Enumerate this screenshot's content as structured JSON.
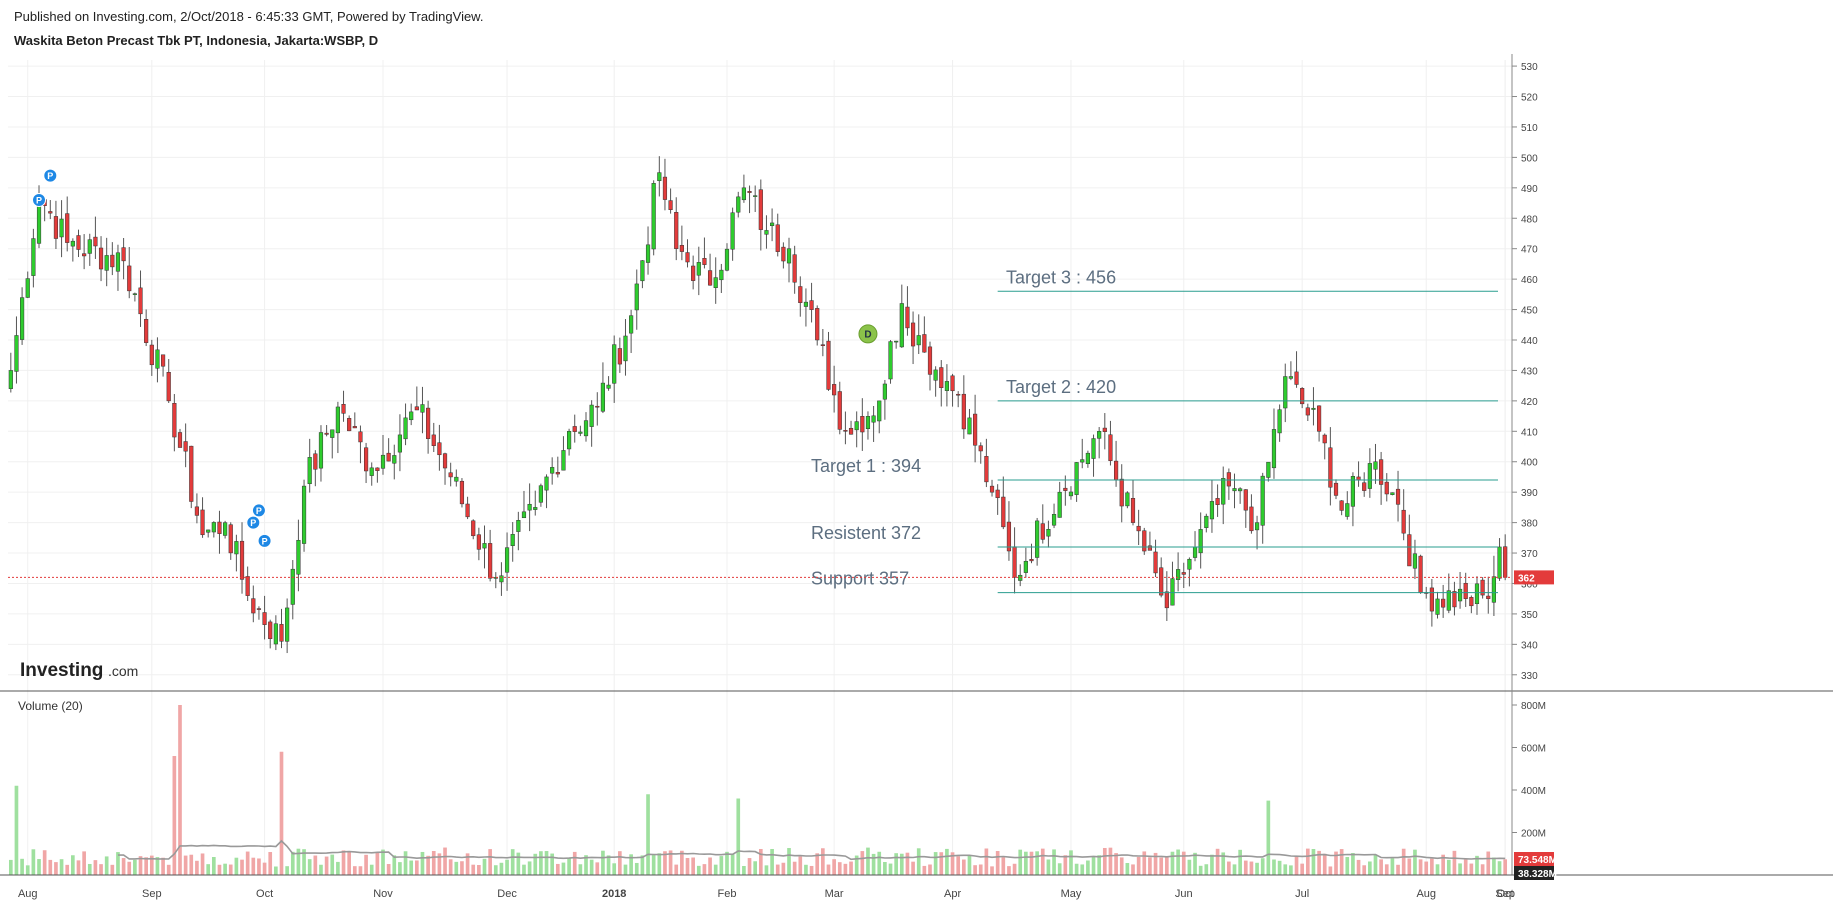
{
  "header": {
    "published": "Published on Investing.com, 2/Oct/2018 - 6:45:33 GMT, Powered by TradingView.",
    "instrument": "Waskita Beton Precast Tbk PT, Indonesia, Jakarta:WSBP, D"
  },
  "logo": {
    "text": "Investing",
    "suffix": ".com"
  },
  "volume_pane": {
    "label": "Volume (20)"
  },
  "colors": {
    "up_body": "#2ecc2e",
    "down_body": "#e33b3b",
    "wick": "#555555",
    "vol_up": "#9fe09f",
    "vol_down": "#f0a6a6",
    "vol_ma": "#999999",
    "level_line": "#2a9d8f",
    "price_line": "#e33b3b",
    "annotation_text": "#5c6e80",
    "marker_p": "#1e88e5",
    "marker_d": "#8bc34a"
  },
  "chart_data": {
    "type": "candlestick",
    "price_axis": {
      "ticks": [
        330,
        340,
        350,
        360,
        370,
        380,
        390,
        400,
        410,
        420,
        430,
        440,
        450,
        460,
        470,
        480,
        490,
        500,
        510,
        520,
        530
      ],
      "range": [
        325,
        532
      ]
    },
    "volume_axis": {
      "ticks": [
        "200M",
        "400M",
        "600M",
        "800M"
      ],
      "range_millions": [
        0,
        800
      ]
    },
    "time_axis": {
      "labels": [
        "Aug",
        "Sep",
        "Oct",
        "Nov",
        "Dec",
        "2018",
        "Feb",
        "Mar",
        "Apr",
        "May",
        "Jun",
        "Jul",
        "Aug",
        "Sep",
        "Oct"
      ],
      "bold": [
        "2018"
      ]
    },
    "anchors": [
      {
        "bar": 0,
        "close": 430
      },
      {
        "bar": 5,
        "close": 488
      },
      {
        "bar": 10,
        "close": 472
      },
      {
        "bar": 20,
        "close": 466
      },
      {
        "bar": 28,
        "close": 420
      },
      {
        "bar": 34,
        "close": 376
      },
      {
        "bar": 38,
        "close": 380
      },
      {
        "bar": 42,
        "close": 356
      },
      {
        "bar": 48,
        "close": 341
      },
      {
        "bar": 52,
        "close": 392
      },
      {
        "bar": 58,
        "close": 418
      },
      {
        "bar": 64,
        "close": 398
      },
      {
        "bar": 72,
        "close": 417
      },
      {
        "bar": 78,
        "close": 395
      },
      {
        "bar": 86,
        "close": 362
      },
      {
        "bar": 93,
        "close": 385
      },
      {
        "bar": 99,
        "close": 410
      },
      {
        "bar": 104,
        "close": 418
      },
      {
        "bar": 110,
        "close": 448
      },
      {
        "bar": 115,
        "close": 495
      },
      {
        "bar": 118,
        "close": 470
      },
      {
        "bar": 124,
        "close": 458
      },
      {
        "bar": 130,
        "close": 490
      },
      {
        "bar": 134,
        "close": 476
      },
      {
        "bar": 138,
        "close": 470
      },
      {
        "bar": 143,
        "close": 440
      },
      {
        "bar": 148,
        "close": 410
      },
      {
        "bar": 154,
        "close": 420
      },
      {
        "bar": 158,
        "close": 452
      },
      {
        "bar": 162,
        "close": 436
      },
      {
        "bar": 168,
        "close": 422
      },
      {
        "bar": 174,
        "close": 390
      },
      {
        "bar": 178,
        "close": 362
      },
      {
        "bar": 186,
        "close": 390
      },
      {
        "bar": 193,
        "close": 410
      },
      {
        "bar": 199,
        "close": 380
      },
      {
        "bar": 205,
        "close": 352
      },
      {
        "bar": 210,
        "close": 372
      },
      {
        "bar": 216,
        "close": 392
      },
      {
        "bar": 221,
        "close": 380
      },
      {
        "bar": 226,
        "close": 428
      },
      {
        "bar": 232,
        "close": 410
      },
      {
        "bar": 236,
        "close": 384
      },
      {
        "bar": 242,
        "close": 400
      },
      {
        "bar": 246,
        "close": 386
      },
      {
        "bar": 250,
        "close": 357
      },
      {
        "bar": 258,
        "close": 355
      },
      {
        "bar": 262,
        "close": 355
      },
      {
        "bar": 264,
        "close": 372
      },
      {
        "bar": 265,
        "close": 362
      }
    ],
    "volume_spikes": [
      {
        "bar": 1,
        "millions": 420
      },
      {
        "bar": 29,
        "millions": 560
      },
      {
        "bar": 30,
        "millions": 800
      },
      {
        "bar": 48,
        "millions": 580
      },
      {
        "bar": 113,
        "millions": 380
      },
      {
        "bar": 129,
        "millions": 360
      },
      {
        "bar": 223,
        "millions": 350
      }
    ],
    "levels": [
      {
        "label": "Target 3 : 456",
        "price": 456
      },
      {
        "label": "Target 2 : 420",
        "price": 420
      },
      {
        "label": "Target 1 : 394",
        "price": 394
      },
      {
        "label": "Resistent 372",
        "price": 372
      },
      {
        "label": "Support 357",
        "price": 357
      }
    ],
    "last_price": {
      "value": 362,
      "label": "362"
    },
    "last_volume": {
      "label": "73.548M"
    },
    "volume_ma_value": {
      "label": "38.328M"
    },
    "markers": [
      {
        "type": "P",
        "bar": 7,
        "price": 494
      },
      {
        "type": "P",
        "bar": 5,
        "price": 486
      },
      {
        "type": "P",
        "bar": 44,
        "price": 384
      },
      {
        "type": "P",
        "bar": 43,
        "price": 380
      },
      {
        "type": "P",
        "bar": 45,
        "price": 374
      },
      {
        "type": "D",
        "bar": 152,
        "price": 442
      }
    ]
  }
}
